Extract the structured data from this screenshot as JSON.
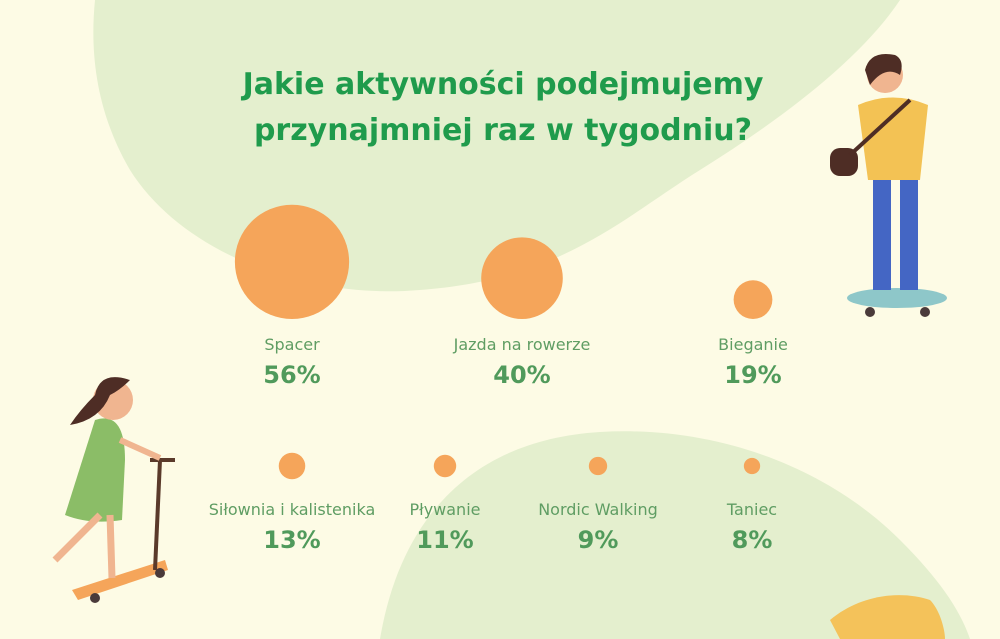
{
  "chart_data": {
    "type": "bubble",
    "title": [
      "Jakie aktywności podejmujemy",
      "przynajmniej raz w tygodniu?"
    ],
    "categories": [
      "Spacer",
      "Jazda na rowerze",
      "Bieganie",
      "Siłownia i kalistenika",
      "Pływanie",
      "Nordic Walking",
      "Taniec"
    ],
    "values": [
      56,
      40,
      19,
      13,
      11,
      9,
      8
    ],
    "value_labels": [
      "56%",
      "40%",
      "19%",
      "13%",
      "11%",
      "9%",
      "8%"
    ],
    "color": "#f5a55a"
  }
}
